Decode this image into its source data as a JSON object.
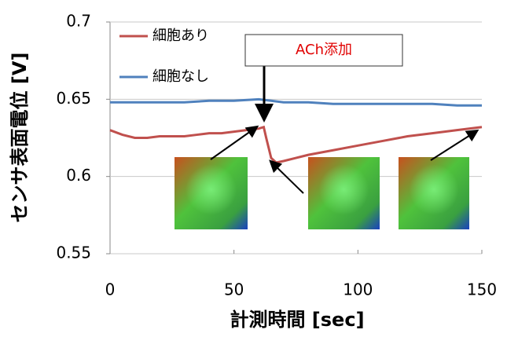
{
  "chart_data": {
    "type": "line",
    "xlabel": "計測時間 [sec]",
    "ylabel": "センサ表面電位 [V]",
    "annotation": "ACh添加",
    "xlim": [
      0,
      150
    ],
    "xticks": [
      0,
      50,
      100,
      150
    ],
    "ylim": [
      0.55,
      0.7
    ],
    "yticks": [
      0.55,
      0.6,
      0.65,
      0.7
    ],
    "grid": true,
    "legend": "upper left",
    "series": [
      {
        "name": "細胞あり",
        "color": "#c0504d",
        "x": [
          0,
          5,
          10,
          15,
          20,
          25,
          30,
          35,
          40,
          45,
          50,
          55,
          60,
          62,
          63,
          65,
          67,
          70,
          75,
          80,
          90,
          100,
          110,
          120,
          130,
          140,
          150
        ],
        "values": [
          0.63,
          0.627,
          0.625,
          0.625,
          0.626,
          0.626,
          0.626,
          0.627,
          0.628,
          0.628,
          0.629,
          0.63,
          0.631,
          0.632,
          0.625,
          0.612,
          0.609,
          0.61,
          0.612,
          0.614,
          0.617,
          0.62,
          0.623,
          0.626,
          0.628,
          0.63,
          0.632
        ]
      },
      {
        "name": "細胞なし",
        "color": "#4f81bd",
        "x": [
          0,
          10,
          20,
          30,
          40,
          50,
          60,
          65,
          70,
          80,
          90,
          100,
          110,
          120,
          130,
          140,
          150
        ],
        "values": [
          0.648,
          0.648,
          0.648,
          0.648,
          0.649,
          0.649,
          0.65,
          0.649,
          0.648,
          0.648,
          0.647,
          0.647,
          0.647,
          0.647,
          0.647,
          0.646,
          0.646
        ]
      }
    ]
  }
}
